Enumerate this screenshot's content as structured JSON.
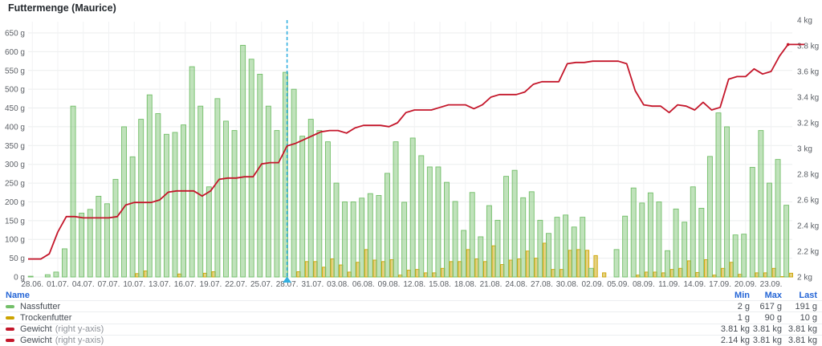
{
  "panel": {
    "title": "Futtermenge (Maurice)"
  },
  "colors": {
    "wet_food": "#73bf69",
    "wet_food_fill": "rgba(115,191,105,0.45)",
    "dry_food": "#cca300",
    "dry_food_fill": "rgba(204,163,0,0.50)",
    "weight_line": "#c4162a",
    "annotation": "#33b0e0",
    "grid": "#ebedee",
    "grid_vertical": "#f1f2f3",
    "axis_text": "#5c6066",
    "header_blue": "#2465d6"
  },
  "chart_data": {
    "type": "bar",
    "title": "Futtermenge (Maurice)",
    "x": [
      "28.06.",
      "29.06.",
      "30.06.",
      "01.07.",
      "02.07.",
      "03.07.",
      "04.07.",
      "05.07.",
      "06.07.",
      "07.07.",
      "08.07.",
      "09.07.",
      "10.07.",
      "11.07.",
      "12.07.",
      "13.07.",
      "14.07.",
      "15.07.",
      "16.07.",
      "17.07.",
      "18.07.",
      "19.07.",
      "20.07.",
      "21.07.",
      "22.07.",
      "23.07.",
      "24.07.",
      "25.07.",
      "26.07.",
      "27.07.",
      "28.07.",
      "29.07.",
      "30.07.",
      "31.07.",
      "01.08.",
      "02.08.",
      "03.08.",
      "04.08.",
      "05.08.",
      "06.08.",
      "07.08.",
      "08.08.",
      "09.08.",
      "10.08.",
      "11.08.",
      "12.08.",
      "13.08.",
      "14.08.",
      "15.08.",
      "16.08.",
      "17.08.",
      "18.08.",
      "19.08.",
      "20.08.",
      "21.08.",
      "22.08.",
      "23.08.",
      "24.08.",
      "25.08.",
      "26.08.",
      "27.08.",
      "28.08.",
      "29.08.",
      "30.08.",
      "31.08.",
      "01.09.",
      "02.09.",
      "03.09.",
      "04.09.",
      "05.09.",
      "06.09.",
      "07.09.",
      "08.09.",
      "09.09.",
      "10.09.",
      "11.09.",
      "12.09.",
      "13.09.",
      "14.09.",
      "15.09.",
      "16.09.",
      "17.09.",
      "18.09.",
      "19.09.",
      "20.09.",
      "21.09.",
      "22.09.",
      "23.09.",
      "24.09.",
      "25.09."
    ],
    "series": [
      {
        "name": "Nassfutter",
        "type": "bar",
        "unit": "g",
        "axis": "left",
        "values": [
          2,
          0,
          6,
          13,
          75,
          455,
          170,
          180,
          215,
          195,
          260,
          400,
          320,
          420,
          485,
          435,
          380,
          385,
          405,
          560,
          455,
          240,
          475,
          415,
          390,
          617,
          580,
          540,
          455,
          390,
          545,
          500,
          375,
          420,
          390,
          360,
          250,
          200,
          200,
          210,
          222,
          217,
          276,
          360,
          199,
          370,
          323,
          293,
          293,
          252,
          201,
          124,
          225,
          107,
          190,
          151,
          268,
          284,
          211,
          227,
          151,
          116,
          159,
          165,
          133,
          159,
          23,
          0,
          0,
          73,
          162,
          237,
          197,
          224,
          200,
          70,
          181,
          146,
          240,
          183,
          321,
          437,
          400,
          112,
          114,
          292,
          390,
          250,
          313,
          191
        ]
      },
      {
        "name": "Trockenfutter",
        "type": "bar",
        "unit": "g",
        "axis": "left",
        "values": [
          0,
          0,
          0,
          0,
          0,
          0,
          0,
          0,
          0,
          0,
          0,
          0,
          9,
          16,
          0,
          0,
          0,
          8,
          0,
          0,
          10,
          14,
          0,
          0,
          0,
          0,
          0,
          0,
          0,
          0,
          0,
          14,
          41,
          41,
          26,
          48,
          32,
          13,
          39,
          73,
          45,
          41,
          46,
          5,
          18,
          20,
          11,
          11,
          23,
          41,
          41,
          73,
          48,
          41,
          83,
          33,
          45,
          48,
          69,
          50,
          90,
          20,
          20,
          71,
          73,
          71,
          57,
          11,
          0,
          0,
          0,
          5,
          13,
          13,
          11,
          20,
          23,
          43,
          12,
          46,
          5,
          23,
          39,
          7,
          0,
          11,
          11,
          23,
          1,
          10
        ]
      },
      {
        "name": "Gewicht",
        "type": "line",
        "unit": "kg",
        "axis": "right",
        "note": "single data point at end",
        "point": {
          "x": "25.09.",
          "value": 3.81
        }
      },
      {
        "name": "Gewicht",
        "type": "line",
        "unit": "kg",
        "axis": "right",
        "values": [
          2.14,
          2.14,
          2.18,
          2.35,
          2.47,
          2.47,
          2.46,
          2.46,
          2.46,
          2.46,
          2.47,
          2.56,
          2.58,
          2.58,
          2.58,
          2.6,
          2.66,
          2.67,
          2.67,
          2.67,
          2.63,
          2.67,
          2.76,
          2.77,
          2.77,
          2.78,
          2.78,
          2.88,
          2.89,
          2.89,
          3.02,
          3.04,
          3.07,
          3.1,
          3.13,
          3.14,
          3.14,
          3.12,
          3.16,
          3.18,
          3.18,
          3.18,
          3.17,
          3.2,
          3.28,
          3.3,
          3.3,
          3.3,
          3.32,
          3.34,
          3.34,
          3.34,
          3.31,
          3.34,
          3.4,
          3.42,
          3.42,
          3.42,
          3.44,
          3.5,
          3.52,
          3.52,
          3.52,
          3.66,
          3.67,
          3.67,
          3.68,
          3.68,
          3.68,
          3.68,
          3.66,
          3.45,
          3.34,
          3.33,
          3.33,
          3.28,
          3.34,
          3.33,
          3.3,
          3.36,
          3.3,
          3.32,
          3.54,
          3.56,
          3.56,
          3.62,
          3.58,
          3.6,
          3.72,
          3.81
        ]
      }
    ],
    "x_ticks": [
      "28.06.",
      "01.07.",
      "04.07.",
      "07.07.",
      "10.07.",
      "13.07.",
      "16.07.",
      "19.07.",
      "22.07.",
      "25.07.",
      "28.07.",
      "31.07.",
      "03.08.",
      "06.08.",
      "09.08.",
      "12.08.",
      "15.08.",
      "18.08.",
      "21.08.",
      "24.08.",
      "27.08.",
      "30.08.",
      "02.09.",
      "05.09.",
      "08.09.",
      "11.09.",
      "14.09.",
      "17.09.",
      "20.09.",
      "23.09."
    ],
    "y_left": {
      "min": 0,
      "max": 650,
      "step": 50,
      "unit": "g"
    },
    "y_right": {
      "min": 2,
      "max": 4,
      "step": 0.2,
      "unit": "kg"
    },
    "y_left_labels": [
      "0 g",
      "50 g",
      "100 g",
      "150 g",
      "200 g",
      "250 g",
      "300 g",
      "350 g",
      "400 g",
      "450 g",
      "500 g",
      "550 g",
      "600 g",
      "650 g"
    ],
    "y_right_labels": [
      "2 kg",
      "2.2 kg",
      "2.4 kg",
      "2.6 kg",
      "2.8 kg",
      "3 kg",
      "3.2 kg",
      "3.4 kg",
      "3.6 kg",
      "3.8 kg",
      "4 kg"
    ],
    "annotation": {
      "x": "28.07.",
      "day_index": 30
    },
    "grid": true,
    "legend_position": "bottom-table"
  },
  "legend": {
    "headers": {
      "name": "Name",
      "min": "Min",
      "max": "Max",
      "last": "Last"
    },
    "rows": [
      {
        "name": "Nassfutter",
        "suffix": "",
        "color": "#73bf69",
        "min": "2 g",
        "max": "617 g",
        "last": "191 g"
      },
      {
        "name": "Trockenfutter",
        "suffix": "",
        "color": "#cca300",
        "min": "1 g",
        "max": "90 g",
        "last": "10 g"
      },
      {
        "name": "Gewicht",
        "suffix": "(right y-axis)",
        "color": "#c4162a",
        "min": "3.81 kg",
        "max": "3.81 kg",
        "last": "3.81 kg"
      },
      {
        "name": "Gewicht",
        "suffix": "(right y-axis)",
        "color": "#c4162a",
        "min": "2.14 kg",
        "max": "3.81 kg",
        "last": "3.81 kg"
      }
    ]
  }
}
